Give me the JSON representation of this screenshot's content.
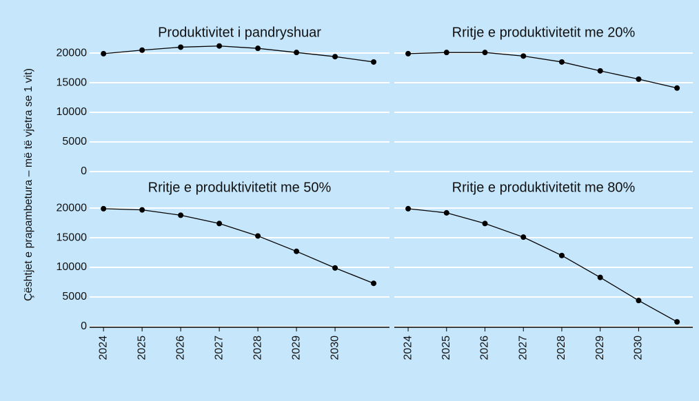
{
  "ylabel": "Çështjet e prapambetura – më të vjetra se 1 vit)",
  "x": [
    2024,
    2025,
    2026,
    2027,
    2028,
    2029,
    2030,
    2031
  ],
  "xlim": [
    2023.64,
    2031.41
  ],
  "xticks": [
    2024,
    2025,
    2026,
    2027,
    2028,
    2029,
    2030
  ],
  "ylim": [
    -350,
    21750
  ],
  "yticks": [
    0,
    5000,
    10000,
    15000,
    20000
  ],
  "grid": true,
  "chart_data": [
    {
      "type": "line",
      "title": "Produktivitet i pandryshuar",
      "color": "#000000",
      "values": [
        19900,
        20500,
        21000,
        21200,
        20800,
        20100,
        19400,
        18500
      ]
    },
    {
      "type": "line",
      "title": "Rritje e produktivitetit me 20%",
      "color": "#000000",
      "values": [
        19900,
        20100,
        20100,
        19500,
        18500,
        17000,
        15600,
        14100
      ]
    },
    {
      "type": "line",
      "title": "Rritje e produktivitetit me 50%",
      "color": "#000000",
      "values": [
        19900,
        19700,
        18800,
        17400,
        15300,
        12700,
        9900,
        7300
      ]
    },
    {
      "type": "line",
      "title": "Rritje e produktivitetit me 80%",
      "color": "#000000",
      "values": [
        19900,
        19200,
        17400,
        15100,
        12000,
        8300,
        4400,
        800
      ]
    }
  ]
}
